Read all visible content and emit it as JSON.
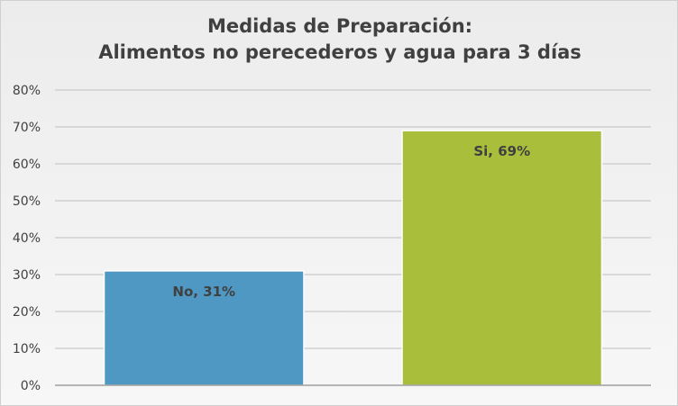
{
  "chart_data": {
    "type": "bar",
    "title_lines": [
      "Medidas de Preparación:",
      "Alimentos no perecederos y agua para 3 días"
    ],
    "categories": [
      "No",
      "Si"
    ],
    "values": [
      31,
      69
    ],
    "data_labels": [
      "No, 31%",
      "Si, 69%"
    ],
    "bar_colors": [
      "#4f98c3",
      "#a9bf3c"
    ],
    "ylim": [
      0,
      80
    ],
    "yticks": [
      0,
      10,
      20,
      30,
      40,
      50,
      60,
      70,
      80
    ],
    "ytick_labels": [
      "0%",
      "10%",
      "20%",
      "30%",
      "40%",
      "50%",
      "60%",
      "70%",
      "80%"
    ],
    "grid": true,
    "legend": "none"
  }
}
